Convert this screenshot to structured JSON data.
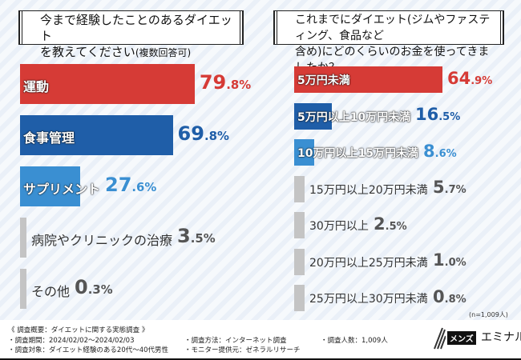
{
  "chart_data": [
    {
      "type": "bar",
      "orientation": "horizontal",
      "title": "今まで経験したことのあるダイエットを教えてください",
      "title_note": "(複数回答可)",
      "categories": [
        "運動",
        "食事管理",
        "サプリメント",
        "病院やクリニックの治療",
        "その他"
      ],
      "values": [
        79.8,
        69.8,
        27.6,
        3.5,
        0.3
      ],
      "unit": "%",
      "colors": [
        "#d63b36",
        "#1f5ea8",
        "#3a8fd2",
        "#c4c4c4",
        "#c4c4c4"
      ]
    },
    {
      "type": "bar",
      "orientation": "horizontal",
      "title": "これまでにダイエット(ジムやファスティング、食品など含め)にどのくらいのお金を使ってきましたか？",
      "categories": [
        "5万円未満",
        "5万円以上10万円未満",
        "10万円以上15万円未満",
        "15万円以上20万円未満",
        "30万円以上",
        "20万円以上25万円未満",
        "25万円以上30万円未満"
      ],
      "values": [
        64.9,
        16.5,
        8.6,
        5.7,
        2.5,
        1.0,
        0.8
      ],
      "unit": "%",
      "colors": [
        "#d63b36",
        "#1f5ea8",
        "#3a8fd2",
        "#c4c4c4",
        "#c4c4c4",
        "#c4c4c4",
        "#c4c4c4"
      ],
      "note": "(n=1,009人)"
    }
  ],
  "titles": {
    "left_1": "今まで経験したことのあるダイエット",
    "left_2": "を教えてください",
    "left_note": "(複数回答可)",
    "right_1": "これまでにダイエット(ジムやファスティング、食品など",
    "right_2": "含め)にどのくらいのお金を使ってきましたか？"
  },
  "footer": {
    "overview": "《 調査概要：ダイエットに関する実態調査 》",
    "period": "・調査期間：2024/02/02〜2024/02/03",
    "target": "・調査対象：ダイエット経験のある20代〜40代男性",
    "method": "・調査方法：インターネット調査",
    "provider": "・モニター提供元：ゼネラルリサーチ",
    "count": "・調査人数：1,009人"
  },
  "logo": {
    "box": "メンズ",
    "text": "エミナル"
  }
}
